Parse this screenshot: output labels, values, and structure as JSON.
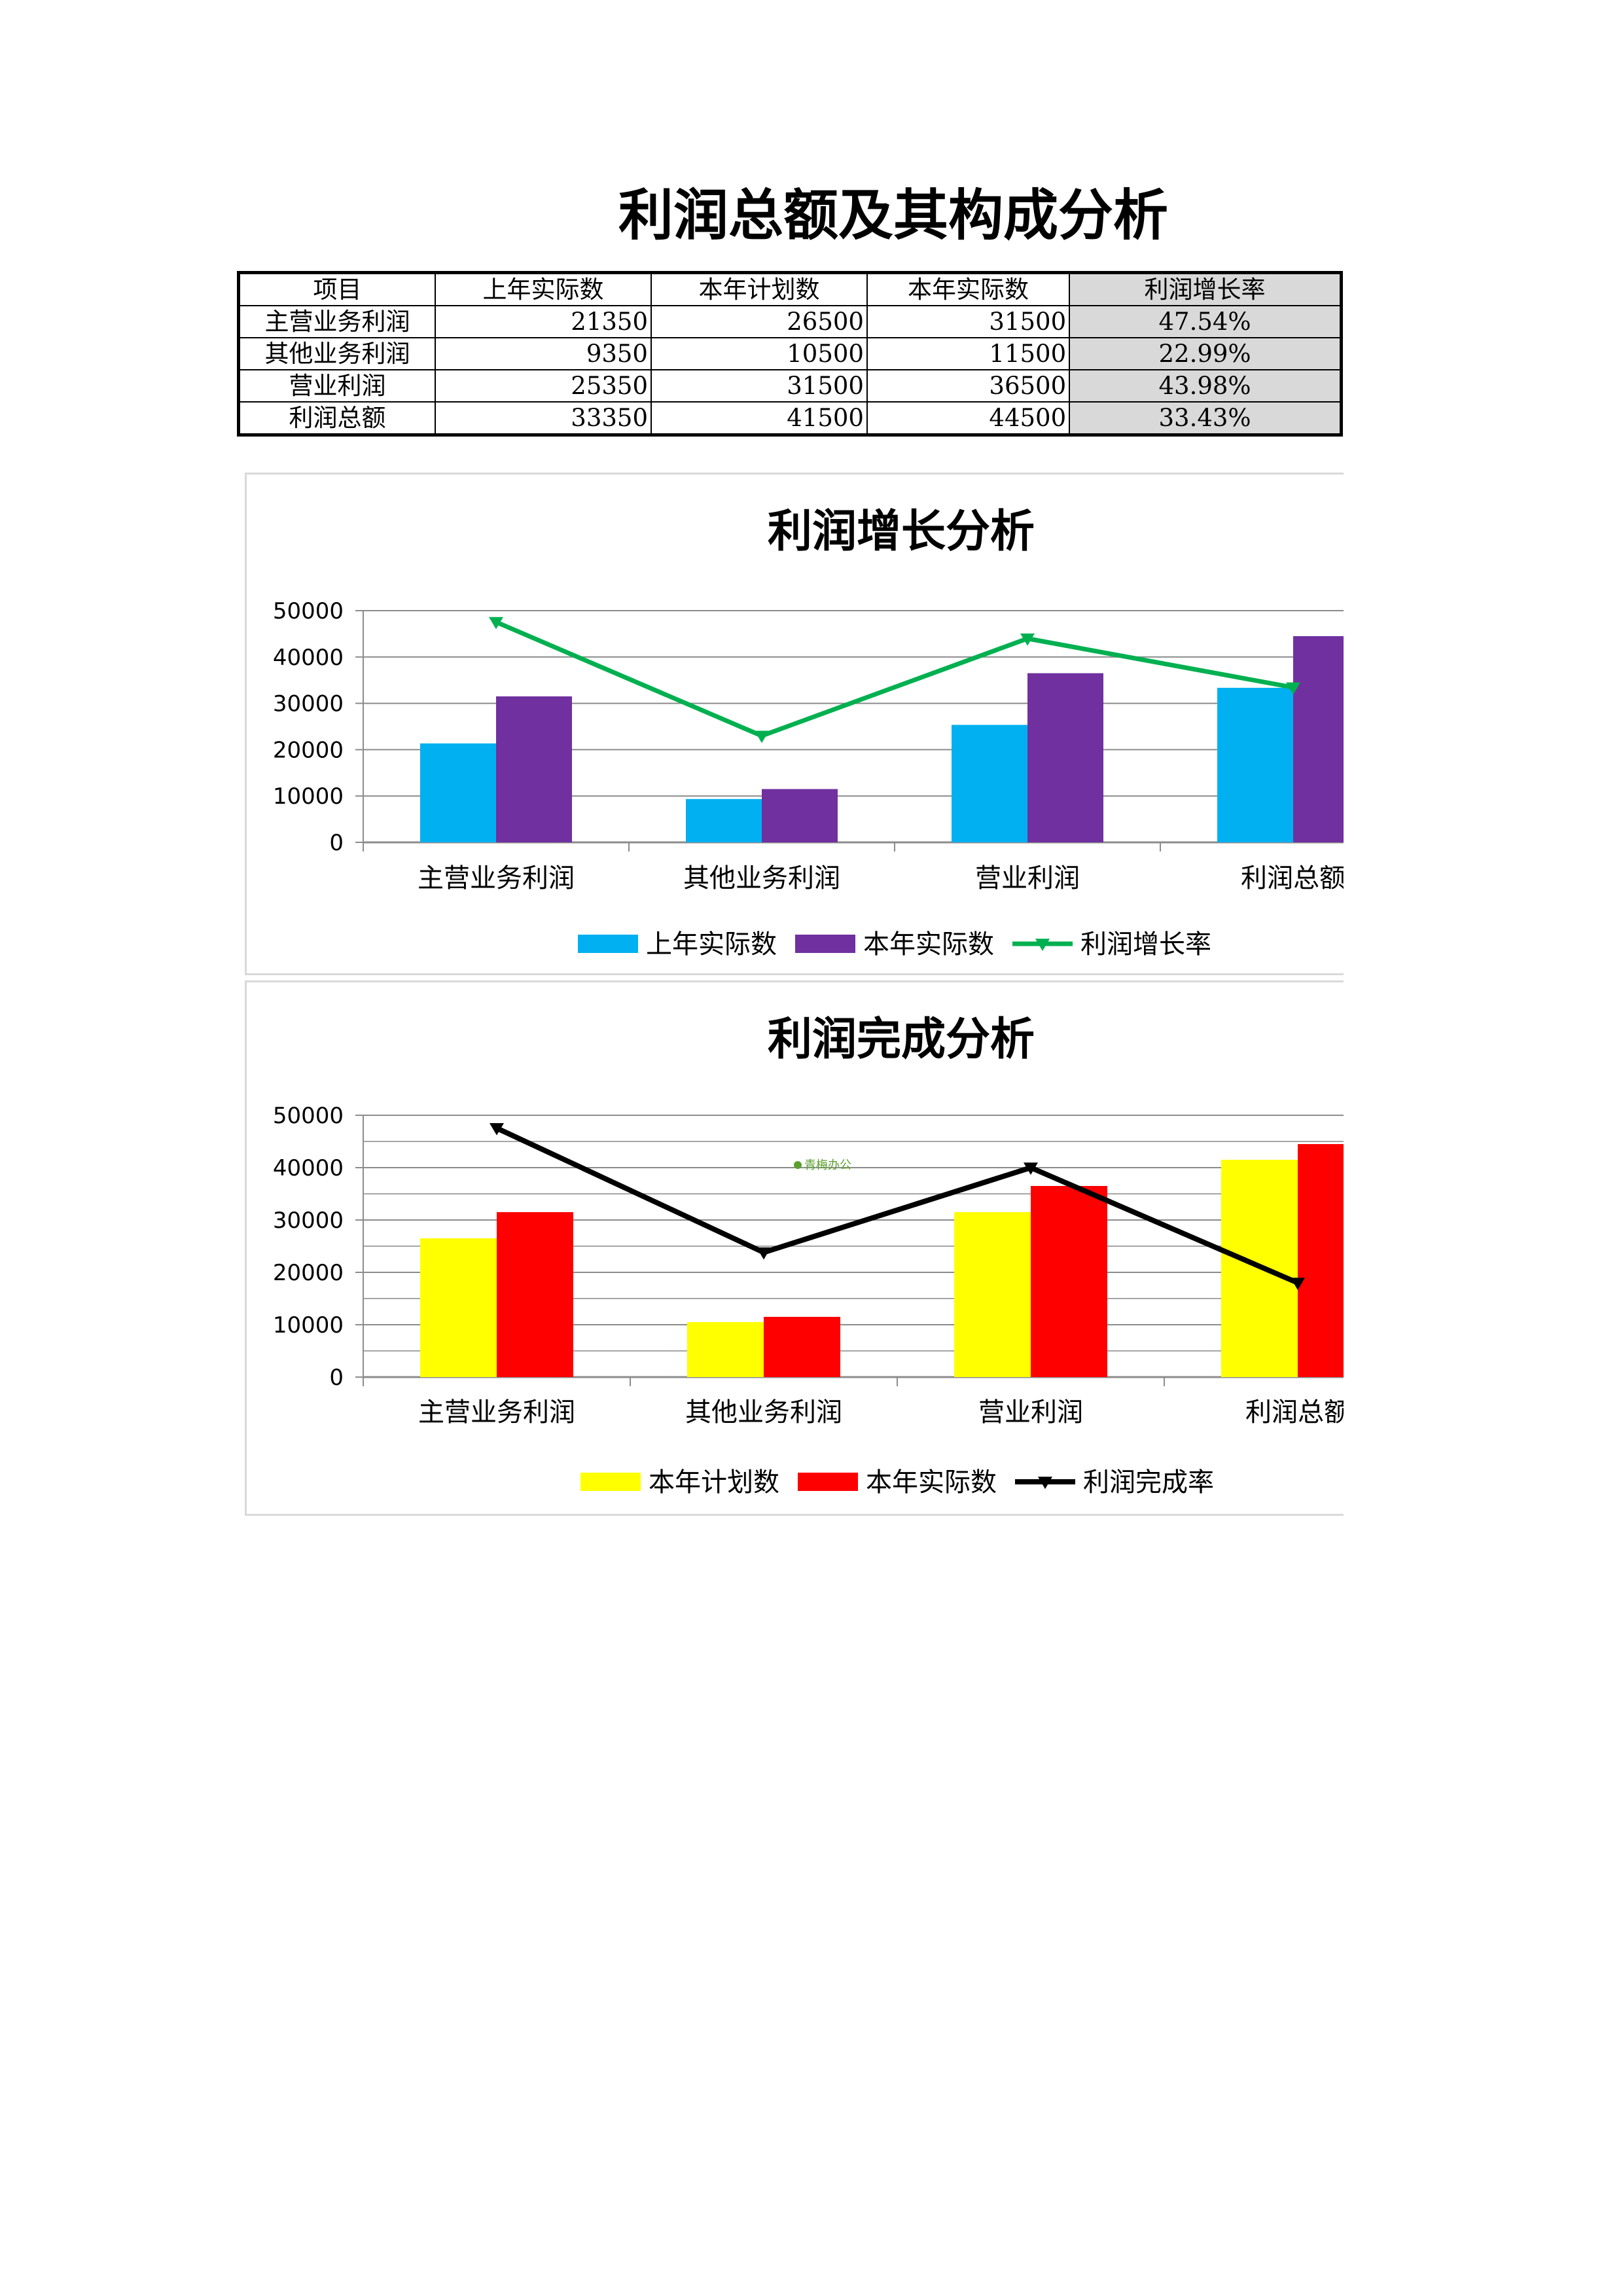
{
  "title": "利润总额及其构成分析",
  "table": {
    "headers": [
      "项目",
      "上年实际数",
      "本年计划数",
      "本年实际数",
      "利润增长率"
    ],
    "rows": [
      [
        "主营业务利润",
        "21350",
        "26500",
        "31500",
        "47.54%"
      ],
      [
        "其他业务利润",
        "9350",
        "10500",
        "11500",
        "22.99%"
      ],
      [
        "营业利润",
        "25350",
        "31500",
        "36500",
        "43.98%"
      ],
      [
        "利润总额",
        "33350",
        "41500",
        "44500",
        "33.43%"
      ]
    ]
  },
  "watermark": "青梅办公",
  "chart_data": [
    {
      "type": "bar",
      "title": "利润增长分析",
      "categories": [
        "主营业务利润",
        "其他业务利润",
        "营业利润",
        "利润总额"
      ],
      "ylim": [
        0,
        50000
      ],
      "yticks": [
        "0",
        "10000",
        "20000",
        "30000",
        "40000",
        "50000"
      ],
      "grid": true,
      "legend": "bottom",
      "series": [
        {
          "name": "上年实际数",
          "kind": "bar",
          "color": "#00b0f0",
          "values": [
            21350,
            9350,
            25350,
            33350
          ]
        },
        {
          "name": "本年实际数",
          "kind": "bar",
          "color": "#7030a0",
          "values": [
            31500,
            11500,
            36500,
            44500
          ]
        },
        {
          "name": "利润增长率",
          "kind": "line",
          "marker": "triangle-down",
          "color": "#00b050",
          "values": [
            47540,
            22990,
            43980,
            33430
          ]
        }
      ]
    },
    {
      "type": "bar",
      "title": "利润完成分析",
      "categories": [
        "主营业务利润",
        "其他业务利润",
        "营业利润",
        "利润总额"
      ],
      "ylim": [
        0,
        50000
      ],
      "yticks": [
        "0",
        "10000",
        "20000",
        "30000",
        "40000",
        "50000"
      ],
      "grid": true,
      "legend": "bottom",
      "series": [
        {
          "name": "本年计划数",
          "kind": "bar",
          "color": "#ffff00",
          "values": [
            26500,
            10500,
            31500,
            41500
          ]
        },
        {
          "name": "本年实际数",
          "kind": "bar",
          "color": "#ff0000",
          "values": [
            31500,
            11500,
            36500,
            44500
          ]
        },
        {
          "name": "利润完成率",
          "kind": "line",
          "marker": "triangle-down",
          "color": "#000000",
          "values": [
            47540,
            23810,
            40000,
            18000
          ]
        }
      ]
    }
  ]
}
